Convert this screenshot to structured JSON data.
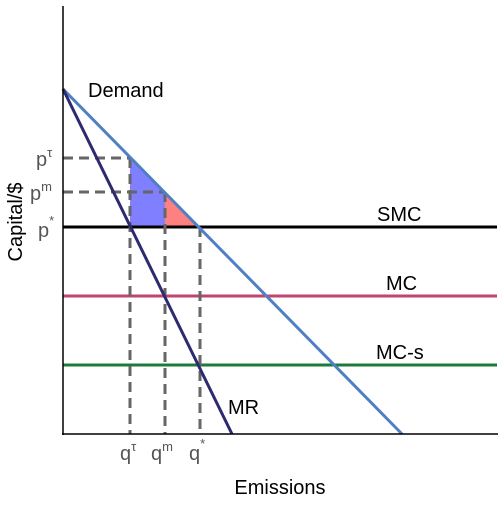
{
  "diagram": {
    "x_axis_label": "Emissions",
    "y_axis_label": "Capital/$",
    "curves": {
      "demand": "Demand",
      "marginal_revenue": "MR",
      "smc": "SMC",
      "mc": "MC",
      "mc_s": "MC-s"
    },
    "price_ticks": [
      {
        "base": "p",
        "sup": "τ"
      },
      {
        "base": "p",
        "sup": "m"
      },
      {
        "base": "p",
        "sup": "*"
      }
    ],
    "quantity_ticks": [
      {
        "base": "q",
        "sup": "τ"
      },
      {
        "base": "q",
        "sup": "m"
      },
      {
        "base": "q",
        "sup": "*"
      }
    ],
    "colors": {
      "demand": "#4f7fc4",
      "marginal_revenue": "#2e2a6e",
      "smc": "#000000",
      "mc": "#c0446e",
      "mc_s": "#1f7a3a",
      "dashed_guides": "#666666",
      "blue_region": "#7f7fff",
      "red_region": "#ff8080"
    }
  }
}
